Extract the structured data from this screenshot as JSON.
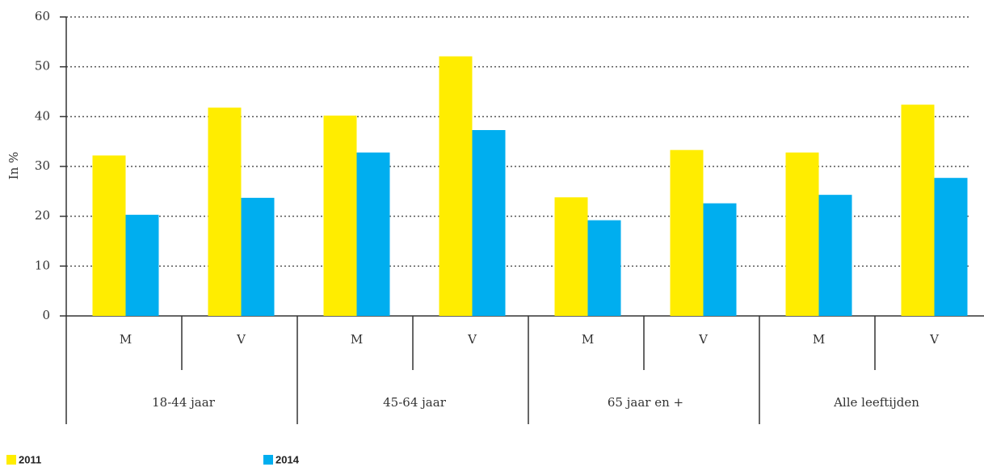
{
  "chart_data": {
    "type": "bar",
    "y_label": "In %",
    "categories": [
      "M",
      "V",
      "M",
      "V",
      "M",
      "V",
      "M",
      "V"
    ],
    "groups": [
      "18-44 jaar",
      "45-64 jaar",
      "65 jaar en +",
      "Alle leeftijden"
    ],
    "series": [
      {
        "name": "2011",
        "color": "#ffed00",
        "values": [
          32.2,
          41.8,
          40.2,
          52.1,
          23.8,
          33.3,
          32.8,
          42.4
        ]
      },
      {
        "name": "2014",
        "color": "#00aeef",
        "values": [
          20.3,
          23.7,
          32.8,
          37.3,
          19.2,
          22.6,
          24.3,
          27.7
        ]
      }
    ],
    "ylim": [
      0,
      60
    ],
    "yticks": [
      0,
      10,
      20,
      30,
      40,
      50,
      60
    ],
    "grid": true,
    "legend": "bottom-left"
  }
}
